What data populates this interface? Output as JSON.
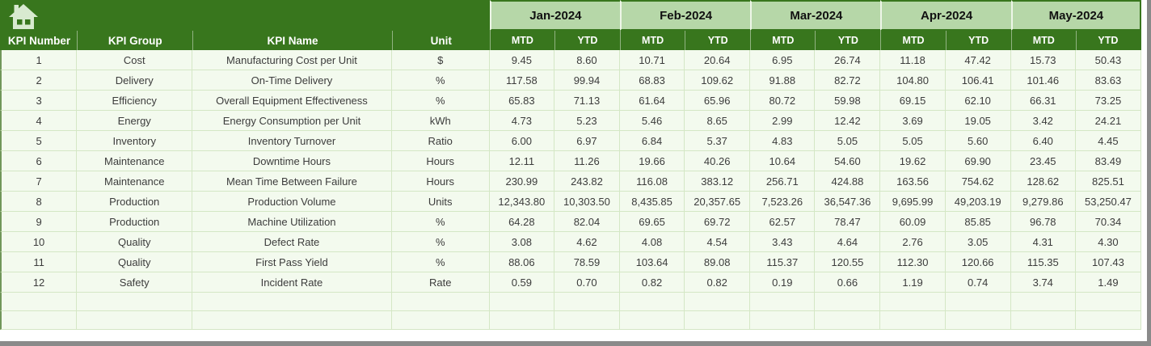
{
  "table": {
    "columns": [
      "KPI Number",
      "KPI Group",
      "KPI Name",
      "Unit"
    ],
    "months": [
      "Jan-2024",
      "Feb-2024",
      "Mar-2024",
      "Apr-2024",
      "May-2024"
    ],
    "subcolumns": [
      "MTD",
      "YTD"
    ],
    "rows": [
      {
        "n": "1",
        "group": "Cost",
        "name": "Manufacturing Cost per Unit",
        "unit": "$",
        "v": [
          "9.45",
          "8.60",
          "10.71",
          "20.64",
          "6.95",
          "26.74",
          "11.18",
          "47.42",
          "15.73",
          "50.43"
        ]
      },
      {
        "n": "2",
        "group": "Delivery",
        "name": "On-Time Delivery",
        "unit": "%",
        "v": [
          "117.58",
          "99.94",
          "68.83",
          "109.62",
          "91.88",
          "82.72",
          "104.80",
          "106.41",
          "101.46",
          "83.63"
        ]
      },
      {
        "n": "3",
        "group": "Efficiency",
        "name": "Overall Equipment Effectiveness",
        "unit": "%",
        "v": [
          "65.83",
          "71.13",
          "61.64",
          "65.96",
          "80.72",
          "59.98",
          "69.15",
          "62.10",
          "66.31",
          "73.25"
        ]
      },
      {
        "n": "4",
        "group": "Energy",
        "name": "Energy Consumption per Unit",
        "unit": "kWh",
        "v": [
          "4.73",
          "5.23",
          "5.46",
          "8.65",
          "2.99",
          "12.42",
          "3.69",
          "19.05",
          "3.42",
          "24.21"
        ]
      },
      {
        "n": "5",
        "group": "Inventory",
        "name": "Inventory Turnover",
        "unit": "Ratio",
        "v": [
          "6.00",
          "6.97",
          "6.84",
          "5.37",
          "4.83",
          "5.05",
          "5.05",
          "5.60",
          "6.40",
          "4.45"
        ]
      },
      {
        "n": "6",
        "group": "Maintenance",
        "name": "Downtime Hours",
        "unit": "Hours",
        "v": [
          "12.11",
          "11.26",
          "19.66",
          "40.26",
          "10.64",
          "54.60",
          "19.62",
          "69.90",
          "23.45",
          "83.49"
        ]
      },
      {
        "n": "7",
        "group": "Maintenance",
        "name": "Mean Time Between Failure",
        "unit": "Hours",
        "v": [
          "230.99",
          "243.82",
          "116.08",
          "383.12",
          "256.71",
          "424.88",
          "163.56",
          "754.62",
          "128.62",
          "825.51"
        ]
      },
      {
        "n": "8",
        "group": "Production",
        "name": "Production Volume",
        "unit": "Units",
        "v": [
          "12,343.80",
          "10,303.50",
          "8,435.85",
          "20,357.65",
          "7,523.26",
          "36,547.36",
          "9,695.99",
          "49,203.19",
          "9,279.86",
          "53,250.47"
        ]
      },
      {
        "n": "9",
        "group": "Production",
        "name": "Machine Utilization",
        "unit": "%",
        "v": [
          "64.28",
          "82.04",
          "69.65",
          "69.72",
          "62.57",
          "78.47",
          "60.09",
          "85.85",
          "96.78",
          "70.34"
        ]
      },
      {
        "n": "10",
        "group": "Quality",
        "name": "Defect Rate",
        "unit": "%",
        "v": [
          "3.08",
          "4.62",
          "4.08",
          "4.54",
          "3.43",
          "4.64",
          "2.76",
          "3.05",
          "4.31",
          "4.30"
        ]
      },
      {
        "n": "11",
        "group": "Quality",
        "name": "First Pass Yield",
        "unit": "%",
        "v": [
          "88.06",
          "78.59",
          "103.64",
          "89.08",
          "115.37",
          "120.55",
          "112.30",
          "120.66",
          "115.35",
          "107.43"
        ]
      },
      {
        "n": "12",
        "group": "Safety",
        "name": "Incident Rate",
        "unit": "Rate",
        "v": [
          "0.59",
          "0.70",
          "0.82",
          "0.82",
          "0.19",
          "0.66",
          "1.19",
          "0.74",
          "3.74",
          "1.49"
        ]
      }
    ],
    "empty_row_count": 2,
    "colors": {
      "header_dark_green": "#38761d",
      "month_light_green": "#b6d7a8",
      "row_background": "#f3faee",
      "grid_line": "#d4e7c5",
      "header_text": "#ffffff",
      "data_text": "#3c3c3c",
      "window_edge_gray": "#8a8a8a"
    }
  }
}
